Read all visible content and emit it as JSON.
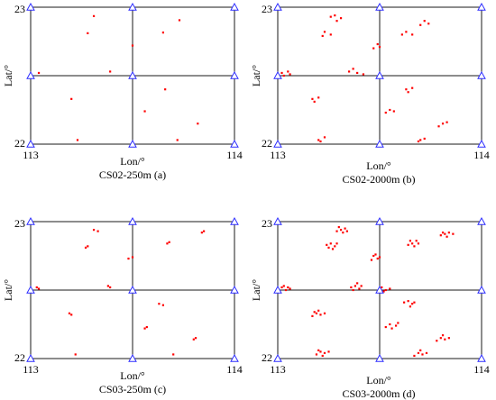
{
  "colors": {
    "grid": "#1a1a1a",
    "vertex": "#2d2dff",
    "point": "#ff0000"
  },
  "chart_data": [
    {
      "type": "scatter",
      "title": "CS02-250m (a)",
      "xlabel": "Lon/°",
      "ylabel": "Lat/°",
      "xlim": [
        113,
        114
      ],
      "ylim": [
        22,
        23
      ],
      "xticks": [
        "113",
        "114"
      ],
      "yticks": [
        "22",
        "23"
      ],
      "grid_lines": {
        "lon": [
          113,
          113.5,
          114
        ],
        "lat": [
          22,
          22.5,
          23
        ]
      },
      "points": [
        [
          113.31,
          22.935
        ],
        [
          113.28,
          22.81
        ],
        [
          113.73,
          22.905
        ],
        [
          113.65,
          22.815
        ],
        [
          113.5,
          22.72
        ],
        [
          113.04,
          22.52
        ],
        [
          113.39,
          22.53
        ],
        [
          113.2,
          22.33
        ],
        [
          113.66,
          22.4
        ],
        [
          113.56,
          22.24
        ],
        [
          113.82,
          22.15
        ],
        [
          113.23,
          22.03
        ],
        [
          113.72,
          22.03
        ]
      ]
    },
    {
      "type": "scatter",
      "title": "CS02-2000m (b)",
      "xlabel": "Lon/°",
      "ylabel": "Lat/°",
      "xlim": [
        113,
        114
      ],
      "ylim": [
        22,
        23
      ],
      "xticks": [
        "113",
        "114"
      ],
      "yticks": [
        "22",
        "23"
      ],
      "grid_lines": {
        "lon": [
          113,
          113.5,
          114
        ],
        "lat": [
          22,
          22.5,
          23
        ]
      },
      "points": [
        [
          113.28,
          22.94
        ],
        [
          113.31,
          22.92
        ],
        [
          113.29,
          22.9
        ],
        [
          113.26,
          22.93
        ],
        [
          113.23,
          22.82
        ],
        [
          113.26,
          22.8
        ],
        [
          113.22,
          22.79
        ],
        [
          113.72,
          22.9
        ],
        [
          113.74,
          22.88
        ],
        [
          113.7,
          22.87
        ],
        [
          113.63,
          22.82
        ],
        [
          113.66,
          22.8
        ],
        [
          113.61,
          22.8
        ],
        [
          113.49,
          22.73
        ],
        [
          113.5,
          22.71
        ],
        [
          113.47,
          22.7
        ],
        [
          113.02,
          22.52
        ],
        [
          113.05,
          22.53
        ],
        [
          113.03,
          22.5
        ],
        [
          113.06,
          22.51
        ],
        [
          113.35,
          22.53
        ],
        [
          113.39,
          22.52
        ],
        [
          113.37,
          22.55
        ],
        [
          113.42,
          22.51
        ],
        [
          113.17,
          22.33
        ],
        [
          113.2,
          22.34
        ],
        [
          113.18,
          22.31
        ],
        [
          113.63,
          22.4
        ],
        [
          113.66,
          22.41
        ],
        [
          113.64,
          22.38
        ],
        [
          113.55,
          22.25
        ],
        [
          113.57,
          22.24
        ],
        [
          113.53,
          22.23
        ],
        [
          113.81,
          22.15
        ],
        [
          113.83,
          22.16
        ],
        [
          113.79,
          22.13
        ],
        [
          113.2,
          22.03
        ],
        [
          113.23,
          22.05
        ],
        [
          113.21,
          22.02
        ],
        [
          113.7,
          22.03
        ],
        [
          113.72,
          22.04
        ],
        [
          113.69,
          22.02
        ]
      ]
    },
    {
      "type": "scatter",
      "title": "CS03-250m (c)",
      "xlabel": "Lon/°",
      "ylabel": "Lat/°",
      "xlim": [
        113,
        114
      ],
      "ylim": [
        22,
        23
      ],
      "xticks": [
        "113",
        "114"
      ],
      "yticks": [
        "22",
        "23"
      ],
      "grid_lines": {
        "lon": [
          113,
          113.5,
          114
        ],
        "lat": [
          22,
          22.5,
          23
        ]
      },
      "points": [
        [
          113.31,
          22.94
        ],
        [
          113.27,
          22.81
        ],
        [
          113.33,
          22.93
        ],
        [
          113.28,
          22.82
        ],
        [
          113.68,
          22.85
        ],
        [
          113.67,
          22.84
        ],
        [
          113.84,
          22.92
        ],
        [
          113.85,
          22.93
        ],
        [
          113.5,
          22.74
        ],
        [
          113.48,
          22.73
        ],
        [
          113.03,
          22.52
        ],
        [
          113.04,
          22.51
        ],
        [
          113.38,
          22.53
        ],
        [
          113.39,
          22.52
        ],
        [
          113.19,
          22.33
        ],
        [
          113.2,
          22.32
        ],
        [
          113.63,
          22.4
        ],
        [
          113.65,
          22.39
        ],
        [
          113.57,
          22.23
        ],
        [
          113.56,
          22.22
        ],
        [
          113.8,
          22.14
        ],
        [
          113.81,
          22.15
        ],
        [
          113.22,
          22.03
        ],
        [
          113.7,
          22.03
        ]
      ]
    },
    {
      "type": "scatter",
      "title": "CS03-2000m (d)",
      "xlabel": "Lon/°",
      "ylabel": "Lat/°",
      "xlim": [
        113,
        114
      ],
      "ylim": [
        22,
        23
      ],
      "xticks": [
        "113",
        "114"
      ],
      "yticks": [
        "22",
        "23"
      ],
      "grid_lines": {
        "lon": [
          113,
          113.5,
          114
        ],
        "lat": [
          22,
          22.5,
          23
        ]
      },
      "points": [
        [
          113.31,
          22.94
        ],
        [
          113.33,
          22.95
        ],
        [
          113.29,
          22.93
        ],
        [
          113.32,
          22.92
        ],
        [
          113.3,
          22.96
        ],
        [
          113.34,
          22.93
        ],
        [
          113.26,
          22.84
        ],
        [
          113.28,
          22.82
        ],
        [
          113.24,
          22.83
        ],
        [
          113.27,
          22.8
        ],
        [
          113.25,
          22.81
        ],
        [
          113.29,
          22.84
        ],
        [
          113.66,
          22.84
        ],
        [
          113.68,
          22.86
        ],
        [
          113.64,
          22.83
        ],
        [
          113.67,
          22.82
        ],
        [
          113.69,
          22.84
        ],
        [
          113.65,
          22.86
        ],
        [
          113.82,
          22.91
        ],
        [
          113.84,
          22.92
        ],
        [
          113.8,
          22.9
        ],
        [
          113.83,
          22.89
        ],
        [
          113.86,
          22.91
        ],
        [
          113.81,
          22.92
        ],
        [
          113.47,
          22.75
        ],
        [
          113.49,
          22.73
        ],
        [
          113.46,
          22.72
        ],
        [
          113.5,
          22.74
        ],
        [
          113.48,
          22.76
        ],
        [
          113.02,
          22.52
        ],
        [
          113.04,
          22.5
        ],
        [
          113.06,
          22.51
        ],
        [
          113.03,
          22.53
        ],
        [
          113.05,
          22.52
        ],
        [
          113.38,
          22.53
        ],
        [
          113.4,
          22.51
        ],
        [
          113.36,
          22.52
        ],
        [
          113.39,
          22.55
        ],
        [
          113.41,
          22.53
        ],
        [
          113.37,
          22.5
        ],
        [
          113.51,
          22.52
        ],
        [
          113.53,
          22.5
        ],
        [
          113.55,
          22.51
        ],
        [
          113.52,
          22.49
        ],
        [
          113.19,
          22.33
        ],
        [
          113.21,
          22.32
        ],
        [
          113.17,
          22.31
        ],
        [
          113.2,
          22.35
        ],
        [
          113.23,
          22.33
        ],
        [
          113.18,
          22.34
        ],
        [
          113.64,
          22.42
        ],
        [
          113.66,
          22.4
        ],
        [
          113.62,
          22.41
        ],
        [
          113.65,
          22.38
        ],
        [
          113.67,
          22.41
        ],
        [
          113.55,
          22.25
        ],
        [
          113.58,
          22.24
        ],
        [
          113.53,
          22.23
        ],
        [
          113.56,
          22.22
        ],
        [
          113.59,
          22.26
        ],
        [
          113.8,
          22.15
        ],
        [
          113.82,
          22.14
        ],
        [
          113.78,
          22.13
        ],
        [
          113.81,
          22.17
        ],
        [
          113.84,
          22.15
        ],
        [
          113.21,
          22.05
        ],
        [
          113.23,
          22.04
        ],
        [
          113.19,
          22.03
        ],
        [
          113.22,
          22.02
        ],
        [
          113.25,
          22.05
        ],
        [
          113.2,
          22.06
        ],
        [
          113.69,
          22.04
        ],
        [
          113.71,
          22.03
        ],
        [
          113.67,
          22.02
        ],
        [
          113.7,
          22.06
        ],
        [
          113.73,
          22.04
        ]
      ]
    }
  ]
}
